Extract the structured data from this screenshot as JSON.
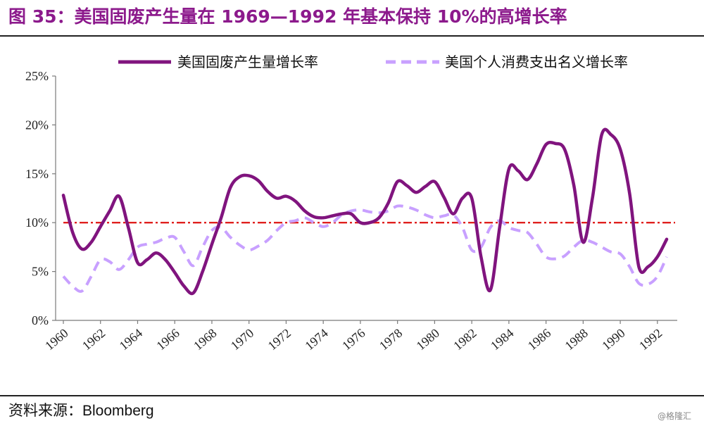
{
  "header": {
    "title": "图 35：美国固废产生量在 1969—1992 年基本保持 10%的高增长率"
  },
  "footer": {
    "source_label": "资料来源：",
    "source_name": "Bloomberg",
    "watermark": "@格隆汇"
  },
  "chart_data": {
    "type": "line",
    "x_tick_labels": [
      "1960",
      "1962",
      "1964",
      "1966",
      "1968",
      "1970",
      "1972",
      "1974",
      "1976",
      "1978",
      "1980",
      "1982",
      "1984",
      "1986",
      "1988",
      "1990",
      "1992"
    ],
    "y_tick_labels": [
      "0%",
      "5%",
      "10%",
      "15%",
      "20%",
      "25%"
    ],
    "ylim": [
      0,
      25
    ],
    "xlim": [
      1960,
      1992.5
    ],
    "grid": false,
    "legend_placement": "top",
    "reference_line": {
      "y": 10,
      "color": "#e0201e",
      "style": "dash-dot"
    },
    "series": [
      {
        "name": "美国固废产生量增长率",
        "color": "#80147e",
        "style": "solid",
        "x": [
          1960,
          1960.5,
          1961,
          1961.5,
          1962,
          1962.5,
          1963,
          1963.5,
          1964,
          1964.5,
          1965,
          1965.5,
          1966,
          1966.5,
          1967,
          1967.5,
          1968,
          1968.5,
          1969,
          1969.5,
          1970,
          1970.5,
          1971,
          1971.5,
          1972,
          1972.5,
          1973,
          1973.5,
          1974,
          1974.5,
          1975,
          1975.5,
          1976,
          1976.5,
          1977,
          1977.5,
          1978,
          1978.5,
          1979,
          1979.5,
          1980,
          1980.5,
          1981,
          1981.5,
          1982,
          1982.5,
          1983,
          1983.5,
          1984,
          1984.5,
          1985,
          1985.5,
          1986,
          1986.5,
          1987,
          1987.5,
          1988,
          1988.5,
          1989,
          1989.5,
          1990,
          1990.5,
          1991,
          1991.5,
          1992,
          1992.5
        ],
        "values": [
          12.8,
          9.0,
          7.3,
          8.0,
          9.6,
          11.2,
          12.7,
          9.5,
          5.9,
          6.2,
          6.9,
          6.2,
          4.9,
          3.5,
          2.8,
          5.0,
          7.8,
          10.5,
          13.6,
          14.7,
          14.8,
          14.3,
          13.2,
          12.5,
          12.7,
          12.2,
          11.2,
          10.6,
          10.5,
          10.7,
          10.9,
          10.9,
          10.0,
          10.0,
          10.5,
          12.0,
          14.2,
          13.8,
          13.1,
          13.7,
          14.2,
          12.6,
          10.9,
          12.5,
          12.5,
          6.5,
          3.1,
          9.5,
          15.5,
          15.3,
          14.4,
          16.0,
          18.0,
          18.1,
          17.5,
          13.8,
          8.0,
          12.5,
          19.0,
          19.0,
          17.5,
          13.0,
          5.5,
          5.5,
          6.5,
          8.3
        ]
      },
      {
        "name": "美国个人消费支出名义增长率",
        "color": "#c8a0ff",
        "style": "dashed",
        "x": [
          1960,
          1960.5,
          1961,
          1961.5,
          1962,
          1962.5,
          1963,
          1963.5,
          1964,
          1964.5,
          1965,
          1965.5,
          1966,
          1966.5,
          1967,
          1967.5,
          1968,
          1968.5,
          1969,
          1969.5,
          1970,
          1970.5,
          1971,
          1971.5,
          1972,
          1972.5,
          1973,
          1973.5,
          1974,
          1974.5,
          1975,
          1975.5,
          1976,
          1976.5,
          1977,
          1977.5,
          1978,
          1978.5,
          1979,
          1979.5,
          1980,
          1980.5,
          1981,
          1981.5,
          1982,
          1982.5,
          1983,
          1983.5,
          1984,
          1984.5,
          1985,
          1985.5,
          1986,
          1986.5,
          1987,
          1987.5,
          1988,
          1988.5,
          1989,
          1989.5,
          1990,
          1990.5,
          1991,
          1991.5,
          1992,
          1992.5
        ],
        "values": [
          4.5,
          3.5,
          3.0,
          4.5,
          6.2,
          6.0,
          5.2,
          6.2,
          7.5,
          7.8,
          8.0,
          8.4,
          8.5,
          7.0,
          5.6,
          7.5,
          9.2,
          9.5,
          8.5,
          7.7,
          7.2,
          7.6,
          8.2,
          9.2,
          10.0,
          10.2,
          10.5,
          10.0,
          9.6,
          10.0,
          10.8,
          11.2,
          11.3,
          11.1,
          11.0,
          11.2,
          11.7,
          11.6,
          11.3,
          10.8,
          10.5,
          10.7,
          10.8,
          9.5,
          7.2,
          7.5,
          9.5,
          10.2,
          9.5,
          9.2,
          9.0,
          7.8,
          6.5,
          6.3,
          6.6,
          7.5,
          8.2,
          8.0,
          7.5,
          7.0,
          6.8,
          5.5,
          3.8,
          3.7,
          4.5,
          6.5
        ]
      }
    ]
  }
}
